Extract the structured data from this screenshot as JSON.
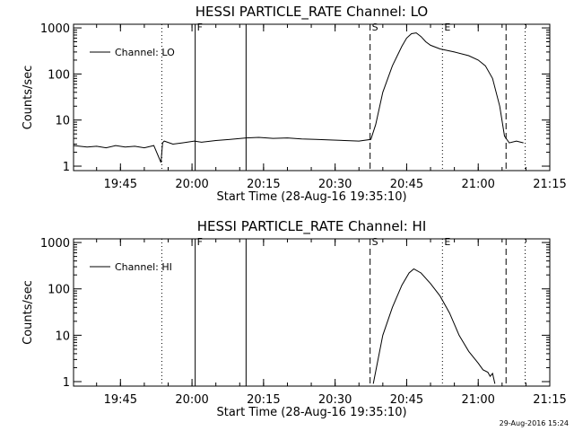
{
  "footer": {
    "timestamp": "29-Aug-2016 15:24"
  },
  "chart_data": [
    {
      "type": "line",
      "title": "HESSI PARTICLE_RATE Channel: LO",
      "xlabel": "Start Time (28-Aug-16 19:35:10)",
      "ylabel": "Counts/sec",
      "ylog": true,
      "xlim": [
        "19:35:10",
        "21:15:00"
      ],
      "ylim": [
        0.8,
        1200
      ],
      "xticks": [
        "19:45",
        "20:00",
        "20:15",
        "20:30",
        "20:45",
        "21:00",
        "21:15"
      ],
      "yticks": [
        {
          "value": 1,
          "label": "1"
        },
        {
          "value": 10,
          "label": "10"
        },
        {
          "value": 100,
          "label": "100"
        },
        {
          "value": 1000,
          "label": "1000"
        }
      ],
      "legend": {
        "label": "Channel: LO",
        "position": "top-left"
      },
      "markers": [
        {
          "time": "19:53:40",
          "style": "dotted",
          "label": ""
        },
        {
          "time": "20:00:40",
          "style": "solid",
          "label": "F"
        },
        {
          "time": "20:11:20",
          "style": "solid",
          "label": ""
        },
        {
          "time": "20:37:20",
          "style": "dashed",
          "label": "S"
        },
        {
          "time": "20:52:30",
          "style": "dotted",
          "label": "E"
        },
        {
          "time": "21:05:50",
          "style": "dashed",
          "label": ""
        },
        {
          "time": "21:09:50",
          "style": "dotted",
          "label": ""
        }
      ],
      "series": [
        {
          "name": "Channel: LO",
          "x": [
            "19:35:10",
            "19:38:00",
            "19:40:00",
            "19:42:00",
            "19:44:00",
            "19:46:00",
            "19:48:00",
            "19:50:00",
            "19:52:00",
            "19:53:30",
            "19:53:50",
            "19:54:10",
            "19:56:00",
            "19:58:00",
            "20:00:30",
            "20:02:00",
            "20:05:00",
            "20:08:00",
            "20:11:20",
            "20:14:00",
            "20:17:00",
            "20:20:00",
            "20:23:00",
            "20:26:00",
            "20:29:00",
            "20:32:00",
            "20:35:00",
            "20:37:30",
            "20:38:30",
            "20:40:00",
            "20:42:00",
            "20:44:00",
            "20:45:00",
            "20:46:00",
            "20:47:00",
            "20:48:00",
            "20:49:00",
            "20:50:00",
            "20:52:00",
            "20:55:00",
            "20:58:00",
            "21:00:00",
            "21:01:30",
            "21:03:00",
            "21:04:30",
            "21:05:30",
            "21:06:30",
            "21:08:00",
            "21:09:30"
          ],
          "y": [
            2.8,
            2.6,
            2.7,
            2.5,
            2.8,
            2.6,
            2.7,
            2.5,
            2.8,
            1.2,
            3.2,
            3.5,
            3.0,
            3.2,
            3.5,
            3.3,
            3.6,
            3.8,
            4.1,
            4.2,
            4.0,
            4.1,
            3.9,
            3.8,
            3.7,
            3.6,
            3.5,
            3.8,
            8,
            40,
            150,
            400,
            600,
            750,
            780,
            650,
            500,
            420,
            350,
            300,
            250,
            200,
            150,
            80,
            20,
            4.5,
            3.2,
            3.5,
            3.2
          ]
        }
      ]
    },
    {
      "type": "line",
      "title": "HESSI PARTICLE_RATE Channel: HI",
      "xlabel": "Start Time (28-Aug-16 19:35:10)",
      "ylabel": "Counts/sec",
      "ylog": true,
      "xlim": [
        "19:35:10",
        "21:15:00"
      ],
      "ylim": [
        0.8,
        1200
      ],
      "xticks": [
        "19:45",
        "20:00",
        "20:15",
        "20:30",
        "20:45",
        "21:00",
        "21:15"
      ],
      "yticks": [
        {
          "value": 1,
          "label": "1"
        },
        {
          "value": 10,
          "label": "10"
        },
        {
          "value": 100,
          "label": "100"
        },
        {
          "value": 1000,
          "label": "1000"
        }
      ],
      "legend": {
        "label": "Channel: HI",
        "position": "top-left"
      },
      "markers": [
        {
          "time": "19:53:40",
          "style": "dotted",
          "label": ""
        },
        {
          "time": "20:00:40",
          "style": "solid",
          "label": "F"
        },
        {
          "time": "20:11:20",
          "style": "solid",
          "label": ""
        },
        {
          "time": "20:37:20",
          "style": "dashed",
          "label": "S"
        },
        {
          "time": "20:52:30",
          "style": "dotted",
          "label": "E"
        },
        {
          "time": "21:05:50",
          "style": "dashed",
          "label": ""
        },
        {
          "time": "21:09:50",
          "style": "dotted",
          "label": ""
        }
      ],
      "series": [
        {
          "name": "Channel: HI",
          "x": [
            "20:38:00",
            "20:39:00",
            "20:40:00",
            "20:42:00",
            "20:44:00",
            "20:45:30",
            "20:46:30",
            "20:48:00",
            "20:50:00",
            "20:52:00",
            "20:54:00",
            "20:56:00",
            "20:58:00",
            "21:00:00",
            "21:01:00",
            "21:02:00",
            "21:02:30",
            "21:03:00",
            "21:03:30"
          ],
          "y": [
            0.9,
            3,
            10,
            40,
            120,
            220,
            270,
            220,
            130,
            70,
            30,
            10,
            4.5,
            2.5,
            1.8,
            1.6,
            1.3,
            1.5,
            0.9
          ]
        }
      ]
    }
  ]
}
